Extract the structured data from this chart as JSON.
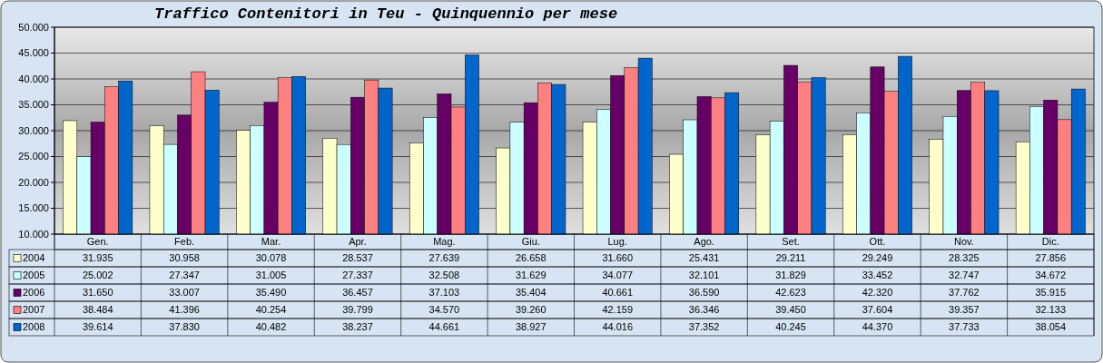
{
  "chart_data": {
    "type": "bar",
    "title": "Traffico Contenitori in Teu - Quinquennio per mese",
    "categories": [
      "Gen.",
      "Feb.",
      "Mar.",
      "Apr.",
      "Mag.",
      "Giu.",
      "Lug.",
      "Ago.",
      "Set.",
      "Ott.",
      "Nov.",
      "Dic."
    ],
    "series": [
      {
        "name": "2004",
        "color": "#ffffcc",
        "values": [
          31935,
          30958,
          30078,
          28537,
          27639,
          26658,
          31660,
          25431,
          29211,
          29249,
          28325,
          27856
        ],
        "value_labels": [
          "31.935",
          "30.958",
          "30.078",
          "28.537",
          "27.639",
          "26.658",
          "31.660",
          "25.431",
          "29.211",
          "29.249",
          "28.325",
          "27.856"
        ]
      },
      {
        "name": "2005",
        "color": "#ccffff",
        "values": [
          25002,
          27347,
          31005,
          27337,
          32508,
          31629,
          34077,
          32101,
          31829,
          33452,
          32747,
          34672
        ],
        "value_labels": [
          "25.002",
          "27.347",
          "31.005",
          "27.337",
          "32.508",
          "31.629",
          "34.077",
          "32.101",
          "31.829",
          "33.452",
          "32.747",
          "34.672"
        ]
      },
      {
        "name": "2006",
        "color": "#660066",
        "values": [
          31650,
          33007,
          35490,
          36457,
          37103,
          35404,
          40661,
          36590,
          42623,
          42320,
          37762,
          35915
        ],
        "value_labels": [
          "31.650",
          "33.007",
          "35.490",
          "36.457",
          "37.103",
          "35.404",
          "40.661",
          "36.590",
          "42.623",
          "42.320",
          "37.762",
          "35.915"
        ]
      },
      {
        "name": "2007",
        "color": "#ff8080",
        "values": [
          38484,
          41396,
          40254,
          39799,
          34570,
          39260,
          42159,
          36346,
          39450,
          37604,
          39357,
          32133
        ],
        "value_labels": [
          "38.484",
          "41.396",
          "40.254",
          "39.799",
          "34.570",
          "39.260",
          "42.159",
          "36.346",
          "39.450",
          "37.604",
          "39.357",
          "32.133"
        ]
      },
      {
        "name": "2008",
        "color": "#0066cc",
        "values": [
          39614,
          37830,
          40482,
          38237,
          44661,
          38927,
          44016,
          37352,
          40245,
          44370,
          37733,
          38054
        ],
        "value_labels": [
          "39.614",
          "37.830",
          "40.482",
          "38.237",
          "44.661",
          "38.927",
          "44.016",
          "37.352",
          "40.245",
          "44.370",
          "37.733",
          "38.054"
        ]
      }
    ],
    "ylim": [
      10000,
      50000
    ],
    "yticks": [
      {
        "value": 10000,
        "label": "10.000"
      },
      {
        "value": 15000,
        "label": "15.000"
      },
      {
        "value": 20000,
        "label": "20.000"
      },
      {
        "value": 25000,
        "label": "25.000"
      },
      {
        "value": 30000,
        "label": "30.000"
      },
      {
        "value": 35000,
        "label": "35.000"
      },
      {
        "value": 40000,
        "label": "40.000"
      },
      {
        "value": 45000,
        "label": "45.000"
      },
      {
        "value": 50000,
        "label": "50.000"
      }
    ],
    "grid": "y",
    "legend": "bottom"
  }
}
